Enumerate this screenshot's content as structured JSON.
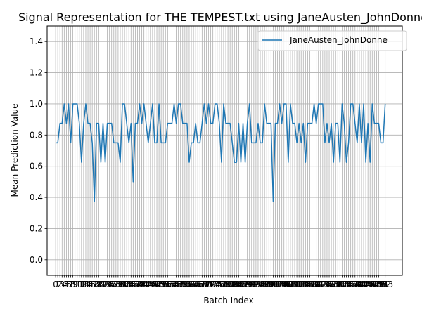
{
  "chart_data": {
    "type": "line",
    "title": "Signal Representation for THE TEMPEST.txt using JaneAusten_JohnDonne",
    "xlabel": "Batch Index",
    "ylabel": "Mean Prediction Value",
    "xlim": [
      -3.95,
      160.95
    ],
    "ylim": [
      -0.1,
      1.5
    ],
    "yticks": [
      0.0,
      0.2,
      0.4,
      0.6,
      0.8,
      1.0,
      1.2,
      1.4
    ],
    "grid": true,
    "legend": "upper-right",
    "color": "#1f77b4",
    "series": [
      {
        "name": "JaneAusten_JohnDonne",
        "values": [
          0.75,
          0.75,
          0.875,
          0.875,
          1.0,
          0.875,
          1.0,
          0.75,
          1.0,
          1.0,
          1.0,
          0.875,
          0.625,
          0.875,
          1.0,
          0.875,
          0.875,
          0.75,
          0.375,
          0.875,
          0.875,
          0.625,
          0.875,
          0.625,
          0.875,
          0.875,
          0.875,
          0.75,
          0.75,
          0.75,
          0.625,
          1.0,
          1.0,
          0.875,
          0.75,
          0.875,
          0.5,
          0.875,
          0.875,
          1.0,
          0.875,
          1.0,
          0.875,
          0.75,
          0.875,
          1.0,
          0.75,
          0.75,
          1.0,
          0.75,
          0.75,
          0.75,
          0.875,
          0.875,
          0.875,
          1.0,
          0.875,
          1.0,
          1.0,
          0.875,
          0.875,
          0.875,
          0.625,
          0.75,
          0.75,
          0.875,
          0.75,
          0.75,
          0.875,
          1.0,
          0.875,
          1.0,
          0.875,
          0.875,
          1.0,
          1.0,
          0.875,
          0.625,
          1.0,
          0.875,
          0.875,
          0.875,
          0.75,
          0.625,
          0.625,
          0.875,
          0.625,
          0.875,
          0.625,
          0.875,
          1.0,
          0.75,
          0.75,
          0.75,
          0.875,
          0.75,
          0.75,
          1.0,
          0.875,
          0.875,
          0.875,
          0.375,
          0.875,
          0.875,
          1.0,
          0.875,
          1.0,
          1.0,
          0.625,
          1.0,
          0.875,
          0.875,
          0.75,
          0.875,
          0.75,
          0.875,
          0.625,
          0.875,
          0.875,
          0.875,
          1.0,
          0.875,
          1.0,
          1.0,
          1.0,
          0.75,
          0.875,
          0.75,
          0.875,
          0.625,
          0.875,
          0.875,
          0.625,
          1.0,
          0.875,
          0.625,
          0.75,
          1.0,
          1.0,
          0.875,
          0.75,
          1.0,
          0.75,
          1.0,
          0.625,
          0.875,
          0.625,
          1.0,
          0.875,
          0.875,
          0.875,
          0.75,
          0.75,
          1.0
        ]
      }
    ]
  }
}
